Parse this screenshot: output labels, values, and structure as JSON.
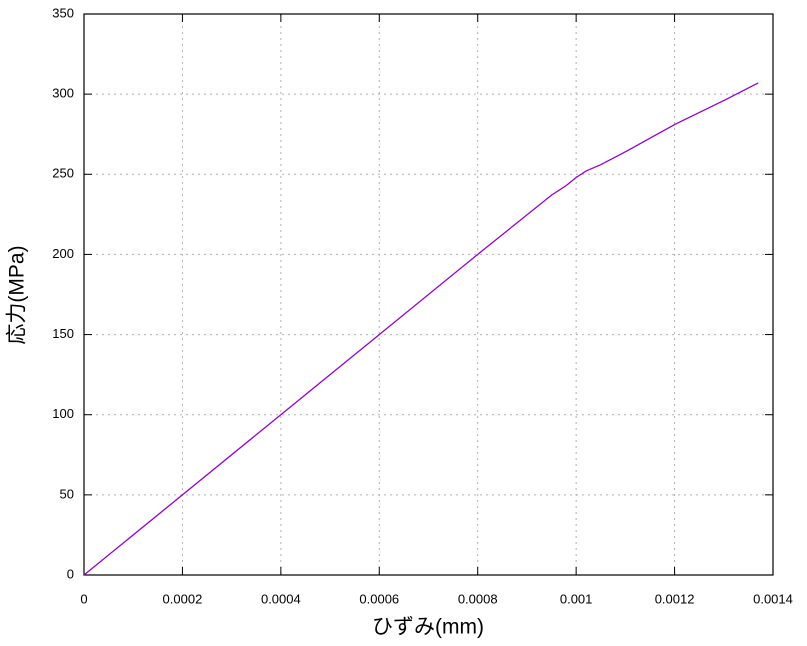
{
  "chart_data": {
    "type": "line",
    "x_label": "ひずみ(mm)",
    "y_label": "応力(MPa)",
    "x": [
      0,
      0.0002,
      0.0004,
      0.0006,
      0.0008,
      0.00095,
      0.00098,
      0.001,
      0.00102,
      0.00105,
      0.0011,
      0.0012,
      0.0013,
      0.00137
    ],
    "series": [
      {
        "color": "#9400d3",
        "values": [
          0,
          50,
          100,
          150,
          200,
          237,
          243,
          248,
          252,
          256,
          264,
          281,
          296,
          307
        ]
      }
    ],
    "xlim": [
      0,
      0.0014
    ],
    "xticks": [
      0,
      0.0002,
      0.0004,
      0.0006,
      0.0008,
      0.001,
      0.0012,
      0.0014
    ],
    "ylim": [
      0,
      350
    ],
    "yticks": [
      0,
      50,
      100,
      150,
      200,
      250,
      300,
      350
    ],
    "grid": true
  }
}
